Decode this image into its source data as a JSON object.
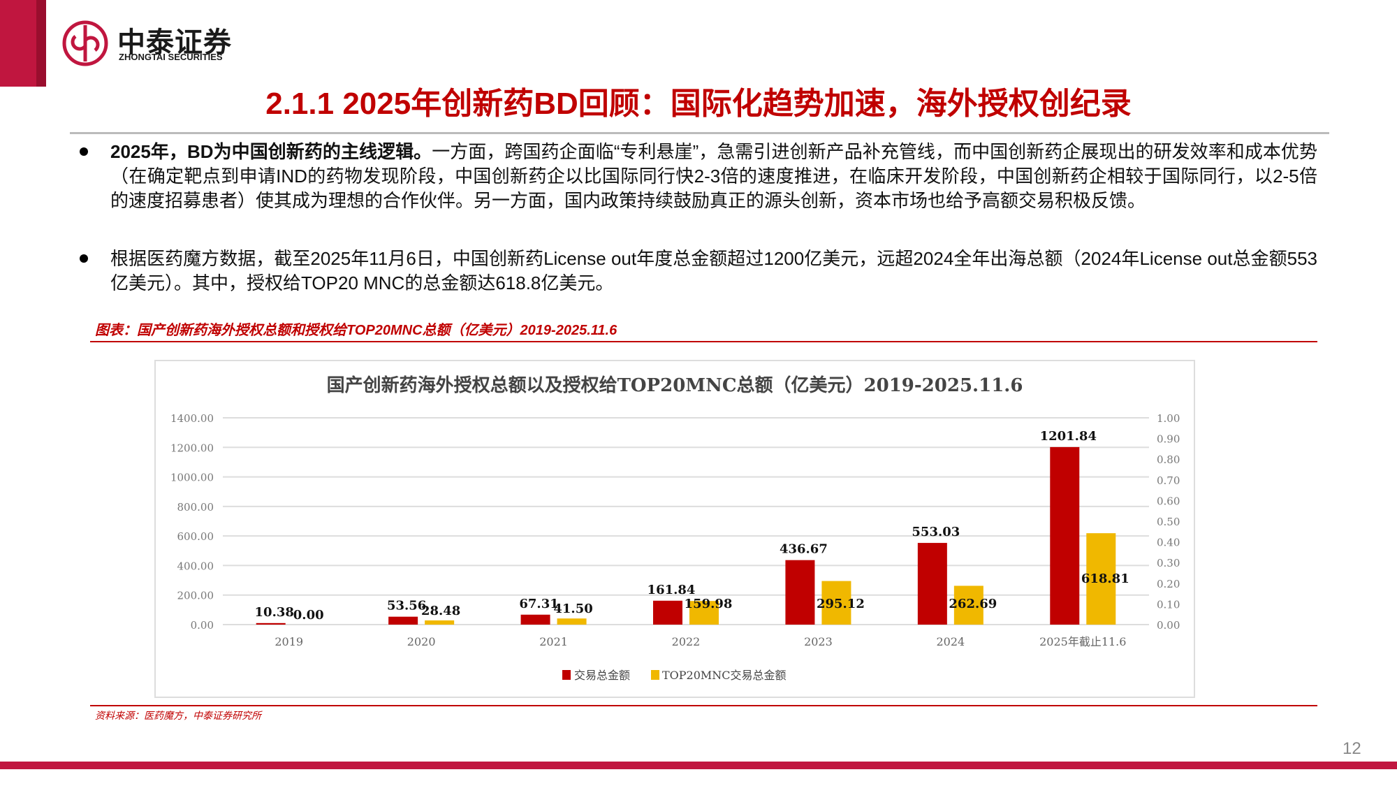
{
  "logo": {
    "cn": "中泰证券",
    "en": "ZHONGTAI SECURITIES"
  },
  "title": "2.1.1 2025年创新药BD回顾：国际化趋势加速，海外授权创纪录",
  "bullets": [
    {
      "bold": "2025年，BD为中国创新药的主线逻辑。",
      "text": "一方面，跨国药企面临“专利悬崖”，急需引进创新产品补充管线，而中国创新药企展现出的研发效率和成本优势（在确定靶点到申请IND的药物发现阶段，中国创新药企以比国际同行快2-3倍的速度推进，在临床开发阶段，中国创新药企相较于国际同行，以2-5倍的速度招募患者）使其成为理想的合作伙伴。另一方面，国内政策持续鼓励真正的源头创新，资本市场也给予高额交易积极反馈。"
    },
    {
      "bold": "",
      "text": "根据医药魔方数据，截至2025年11月6日，中国创新药License out年度总金额超过1200亿美元，远超2024全年出海总额（2024年License out总金额553亿美元）。其中，授权给TOP20 MNC的总金额达618.8亿美元。"
    }
  ],
  "caption": "图表：国产创新药海外授权总额和授权给TOP20MNC总额（亿美元）2019-2025.11.6",
  "source": "资料来源：医药魔方，中泰证券研究所",
  "page_number": "12",
  "colors": {
    "brand": "#c0163f",
    "accent_text": "#c00000",
    "series1": "#c00000",
    "series2": "#f0b800"
  },
  "chart_data": {
    "type": "bar",
    "title": "国产创新药海外授权总额以及授权给TOP20MNC总额（亿美元）2019-2025.11.6",
    "categories": [
      "2019",
      "2020",
      "2021",
      "2022",
      "2023",
      "2024",
      "2025年截止11.6"
    ],
    "series": [
      {
        "name": "交易总金额",
        "values": [
          10.38,
          53.56,
          67.31,
          161.84,
          436.67,
          553.03,
          1201.84
        ],
        "labels": [
          "10.38",
          "53.56",
          "67.31",
          "161.84",
          "436.67",
          "553.03",
          "1201.84"
        ]
      },
      {
        "name": "TOP20MNC交易总金额",
        "values": [
          0.0,
          28.48,
          41.5,
          159.98,
          295.12,
          262.69,
          618.81
        ],
        "labels": [
          "0.00",
          "28.48",
          "41.50",
          "159.98",
          "295.12",
          "262.69",
          "618.81"
        ]
      }
    ],
    "ylim": [
      0,
      1400
    ],
    "yticks": [
      "0.00",
      "200.00",
      "400.00",
      "600.00",
      "800.00",
      "1000.00",
      "1200.00",
      "1400.00"
    ],
    "y2lim": [
      0,
      1
    ],
    "y2ticks": [
      "0.00",
      "0.10",
      "0.20",
      "0.30",
      "0.40",
      "0.50",
      "0.60",
      "0.70",
      "0.80",
      "0.90",
      "1.00"
    ],
    "grid": true,
    "legend": "bottom"
  }
}
